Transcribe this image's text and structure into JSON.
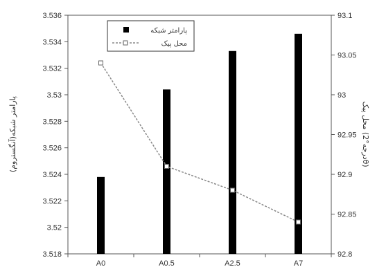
{
  "chart_data": {
    "type": "bar",
    "categories": [
      "A0",
      "A0.5",
      "A2.5",
      "A7"
    ],
    "series": [
      {
        "name": "پارامتر شبکه",
        "type": "bar",
        "axis": "left",
        "values": [
          3.5238,
          3.5304,
          3.5333,
          3.5346
        ],
        "color": "#000000"
      },
      {
        "name": "محل پیک",
        "type": "line",
        "axis": "right",
        "values": [
          93.04,
          92.91,
          92.88,
          92.84
        ],
        "color": "#888888"
      }
    ],
    "left_axis": {
      "label": "پارامتر شبکه(آنگستروم)",
      "ylim": [
        3.518,
        3.536
      ],
      "ticks": [
        "3.518",
        "3.52",
        "3.522",
        "3.524",
        "3.526",
        "3.528",
        "3.53",
        "3.532",
        "3.534",
        "3.536"
      ]
    },
    "right_axis": {
      "label": "محل پیک (درجه°2θ)",
      "ylim": [
        92.8,
        93.1
      ],
      "ticks": [
        "92.8",
        "92.85",
        "92.9",
        "92.95",
        "93",
        "93.05",
        "93.1"
      ]
    },
    "legend_position": "top-center",
    "grid": false
  }
}
